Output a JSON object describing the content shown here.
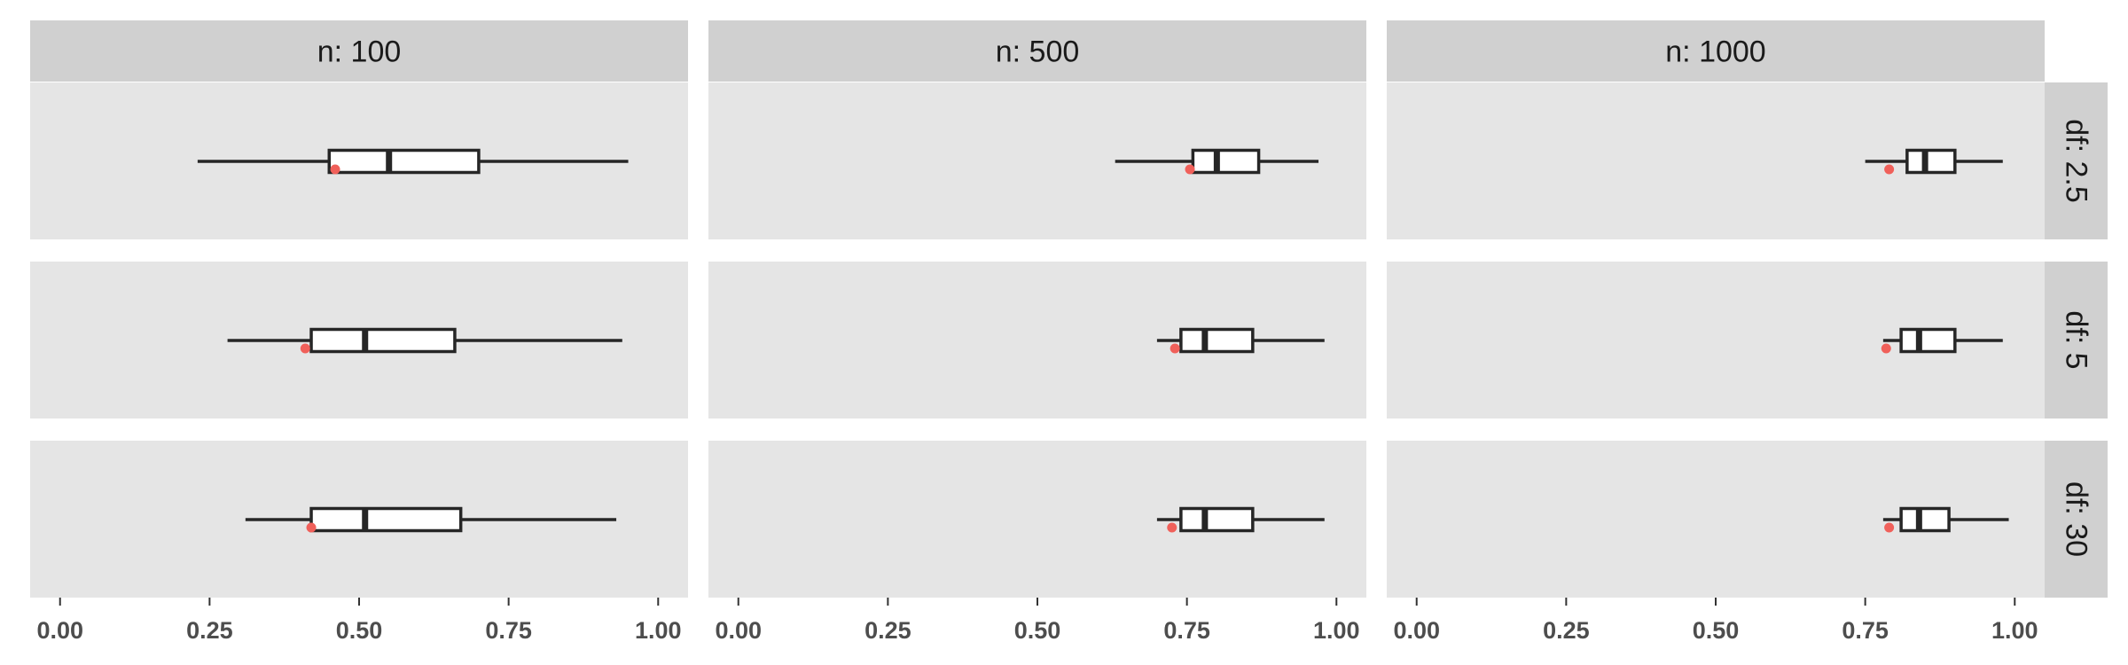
{
  "chart_data": {
    "type": "boxplot",
    "orientation": "horizontal",
    "facet_columns": {
      "variable": "n",
      "labels": [
        "n: 100",
        "n: 500",
        "n: 1000"
      ]
    },
    "facet_rows": {
      "variable": "df",
      "labels": [
        "df: 2.5",
        "df: 5",
        "df: 30"
      ]
    },
    "x_ticks": [
      "0.00",
      "0.25",
      "0.50",
      "0.75",
      "1.00"
    ],
    "xlim": [
      -0.05,
      1.05
    ],
    "grid": false,
    "panel_background": "#e5e5e5",
    "strip_background": "#d0d0d0",
    "box_color": "#262626",
    "point_color": "#f0605a",
    "panels": [
      {
        "row": "df: 2.5",
        "col": "n: 100",
        "whisker_low": 0.23,
        "q1": 0.45,
        "median": 0.55,
        "q3": 0.7,
        "whisker_high": 0.95,
        "point": 0.46
      },
      {
        "row": "df: 2.5",
        "col": "n: 500",
        "whisker_low": 0.63,
        "q1": 0.76,
        "median": 0.8,
        "q3": 0.87,
        "whisker_high": 0.97,
        "point": 0.755
      },
      {
        "row": "df: 2.5",
        "col": "n: 1000",
        "whisker_low": 0.75,
        "q1": 0.82,
        "median": 0.85,
        "q3": 0.9,
        "whisker_high": 0.98,
        "point": 0.79
      },
      {
        "row": "df: 5",
        "col": "n: 100",
        "whisker_low": 0.28,
        "q1": 0.42,
        "median": 0.51,
        "q3": 0.66,
        "whisker_high": 0.94,
        "point": 0.41
      },
      {
        "row": "df: 5",
        "col": "n: 500",
        "whisker_low": 0.7,
        "q1": 0.74,
        "median": 0.78,
        "q3": 0.86,
        "whisker_high": 0.98,
        "point": 0.73
      },
      {
        "row": "df: 5",
        "col": "n: 1000",
        "whisker_low": 0.78,
        "q1": 0.81,
        "median": 0.84,
        "q3": 0.9,
        "whisker_high": 0.98,
        "point": 0.785
      },
      {
        "row": "df: 30",
        "col": "n: 100",
        "whisker_low": 0.31,
        "q1": 0.42,
        "median": 0.51,
        "q3": 0.67,
        "whisker_high": 0.93,
        "point": 0.42
      },
      {
        "row": "df: 30",
        "col": "n: 500",
        "whisker_low": 0.7,
        "q1": 0.74,
        "median": 0.78,
        "q3": 0.86,
        "whisker_high": 0.98,
        "point": 0.725
      },
      {
        "row": "df: 30",
        "col": "n: 1000",
        "whisker_low": 0.78,
        "q1": 0.81,
        "median": 0.84,
        "q3": 0.89,
        "whisker_high": 0.99,
        "point": 0.79
      }
    ]
  }
}
